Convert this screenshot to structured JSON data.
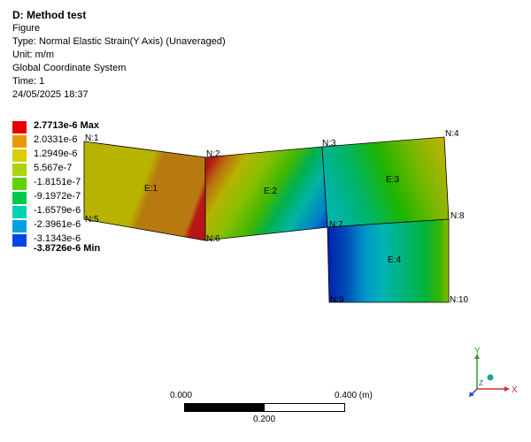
{
  "header": {
    "title": "D: Method test",
    "subtitle": "Figure",
    "type": "Type: Normal Elastic Strain(Y Axis) (Unaveraged)",
    "unit": "Unit: m/m",
    "coord": "Global Coordinate System",
    "time": "Time: 1",
    "date": "24/05/2025 18:37"
  },
  "legend": {
    "entries": [
      {
        "label": "2.7713e-6 Max",
        "color": "#e60000",
        "bold": true
      },
      {
        "label": "2.0331e-6",
        "color": "#e69a00",
        "bold": false
      },
      {
        "label": "1.2949e-6",
        "color": "#dccd00",
        "bold": false
      },
      {
        "label": "5.567e-7",
        "color": "#aed20a",
        "bold": false
      },
      {
        "label": "-1.8151e-7",
        "color": "#5fd200",
        "bold": false
      },
      {
        "label": "-9.1972e-7",
        "color": "#00c84b",
        "bold": false
      },
      {
        "label": "-1.6579e-6",
        "color": "#00d2b4",
        "bold": false
      },
      {
        "label": "-2.3961e-6",
        "color": "#00a0e6",
        "bold": false
      },
      {
        "label": "-3.1343e-6",
        "color": "#0046e6",
        "bold": false
      },
      {
        "label": "-3.8726e-6 Min",
        "color": "#000000",
        "bold": true
      }
    ]
  },
  "model": {
    "nodes": [
      "N:1",
      "N:2",
      "N:3",
      "N:4",
      "N:5",
      "N:6",
      "N:7",
      "N:8",
      "N:9",
      "N:10"
    ],
    "elements": [
      "E:1",
      "E:2",
      "E:3",
      "E:4"
    ]
  },
  "scale": {
    "left": "0.000",
    "right": "0.400 (m)",
    "middle": "0.200"
  },
  "triad": {
    "x": "X",
    "y": "Y",
    "z": "Z"
  }
}
